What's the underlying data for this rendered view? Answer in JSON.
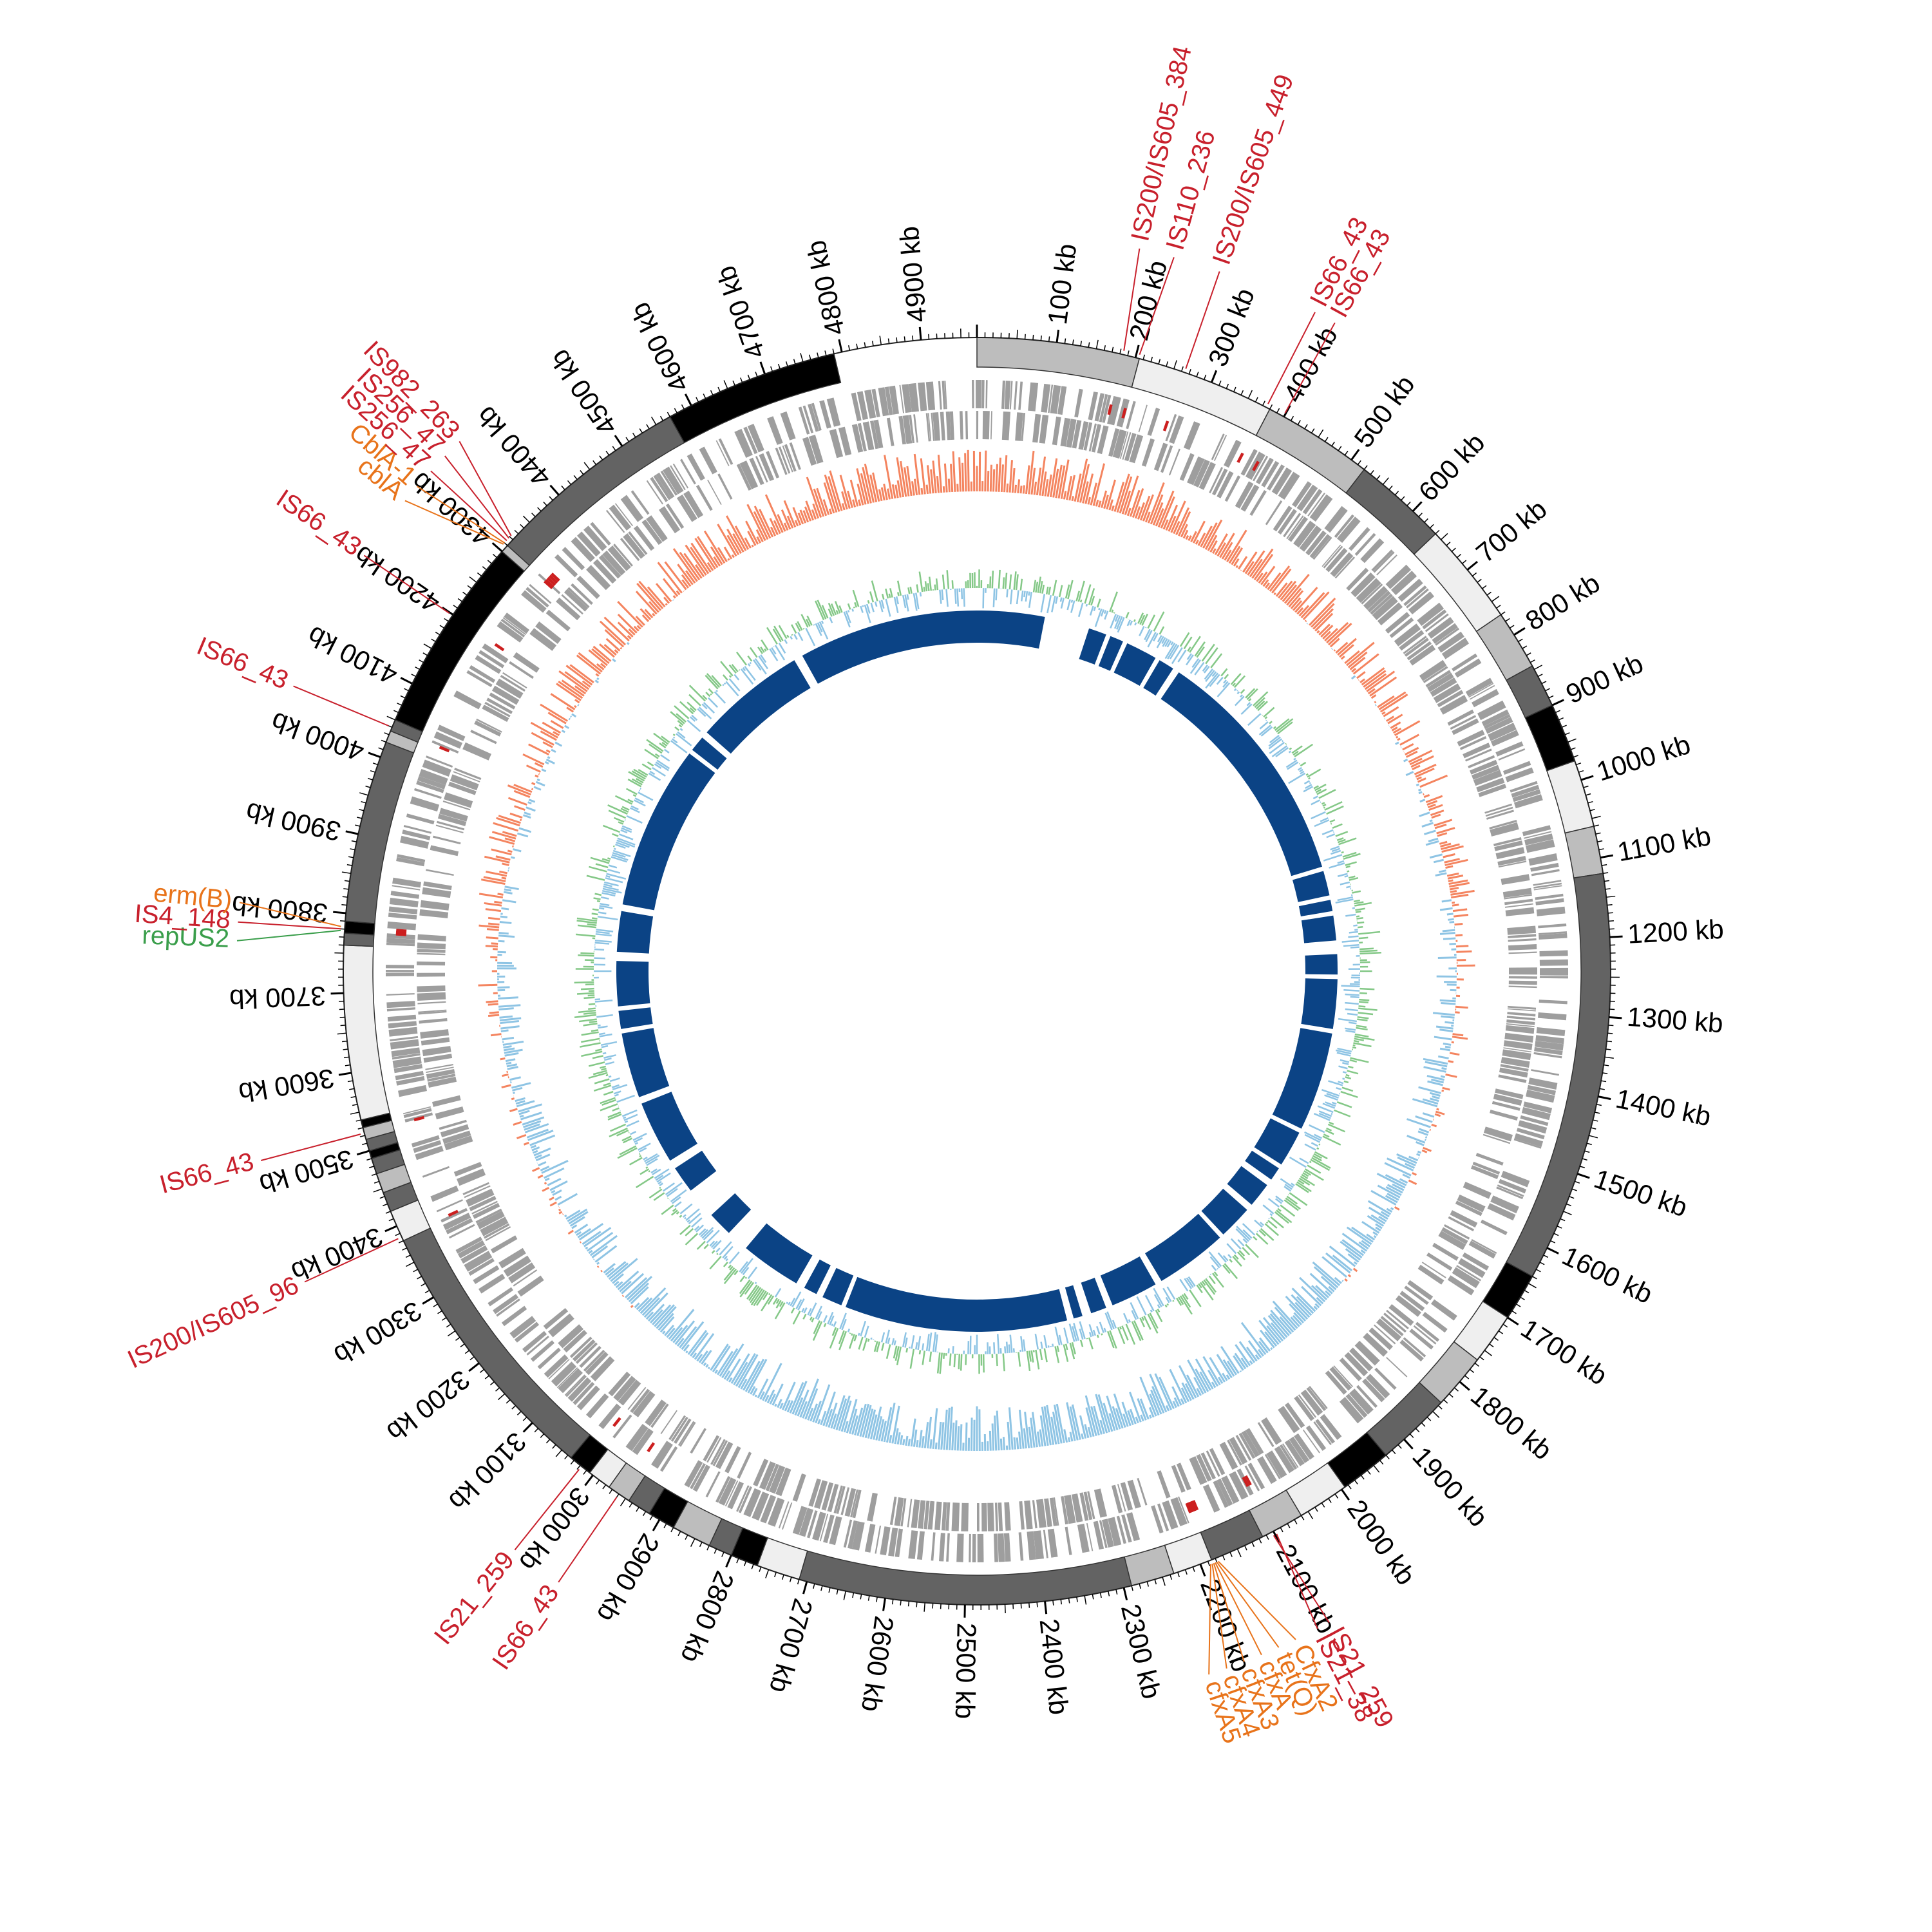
{
  "diagram": {
    "genome_length_kb": 4970,
    "unit": "kb",
    "tick_interval_kb": 100,
    "tick_labels": [
      "100 kb",
      "200 kb",
      "300 kb",
      "400 kb",
      "500 kb",
      "600 kb",
      "700 kb",
      "800 kb",
      "900 kb",
      "1000 kb",
      "1100 kb",
      "1200 kb",
      "1300 kb",
      "1400 kb",
      "1500 kb",
      "1600 kb",
      "1700 kb",
      "1800 kb",
      "1900 kb",
      "2000 kb",
      "2100 kb",
      "2200 kb",
      "2300 kb",
      "2400 kb",
      "2500 kb",
      "2600 kb",
      "2700 kb",
      "2800 kb",
      "2900 kb",
      "3000 kb",
      "3100 kb",
      "3200 kb",
      "3300 kb",
      "3400 kb",
      "3500 kb",
      "3600 kb",
      "3700 kb",
      "3800 kb",
      "3900 kb",
      "4000 kb",
      "4100 kb",
      "4200 kb",
      "4300 kb",
      "4400 kb",
      "4500 kb",
      "4600 kb",
      "4700 kb",
      "4800 kb",
      "4900 kb"
    ],
    "contig_shades": [
      "#bdbdbd",
      "#efefef",
      "#bdbdbd",
      "#636363",
      "#efefef",
      "#bdbdbd",
      "#636363",
      "#000000",
      "#efefef",
      "#bdbdbd",
      "#636363",
      "#000000",
      "#efefef",
      "#bdbdbd",
      "#636363",
      "#000000",
      "#efefef",
      "#bdbdbd",
      "#636363",
      "#efefef",
      "#bdbdbd",
      "#636363",
      "#efefef",
      "#000000",
      "#636363",
      "#bdbdbd",
      "#000000",
      "#636363",
      "#bdbdbd",
      "#efefef",
      "#000000",
      "#636363",
      "#efefef",
      "#636363",
      "#bdbdbd",
      "#636363",
      "#000000",
      "#636363",
      "#bdbdbd",
      "#000000",
      "#efefef",
      "#636363",
      "#000000",
      "#636363",
      "#bdbdbd",
      "#636363",
      "#000000",
      "#bdbdbd",
      "#636363",
      "#000000"
    ],
    "contigs": [
      {
        "start": 0,
        "end": 205
      },
      {
        "start": 205,
        "end": 380
      },
      {
        "start": 380,
        "end": 520
      },
      {
        "start": 520,
        "end": 640
      },
      {
        "start": 640,
        "end": 770
      },
      {
        "start": 770,
        "end": 845
      },
      {
        "start": 845,
        "end": 900
      },
      {
        "start": 900,
        "end": 975
      },
      {
        "start": 975,
        "end": 1060
      },
      {
        "start": 1060,
        "end": 1120
      },
      {
        "start": 1120,
        "end": 1640
      },
      {
        "start": 1640,
        "end": 1700
      },
      {
        "start": 1700,
        "end": 1765
      },
      {
        "start": 1765,
        "end": 1835
      },
      {
        "start": 1835,
        "end": 1930
      },
      {
        "start": 1930,
        "end": 1995
      },
      {
        "start": 1995,
        "end": 2060
      },
      {
        "start": 2060,
        "end": 2115
      },
      {
        "start": 2115,
        "end": 2185
      },
      {
        "start": 2185,
        "end": 2235
      },
      {
        "start": 2235,
        "end": 2290
      },
      {
        "start": 2290,
        "end": 2710
      },
      {
        "start": 2710,
        "end": 2765
      },
      {
        "start": 2765,
        "end": 2800
      },
      {
        "start": 2800,
        "end": 2830
      },
      {
        "start": 2830,
        "end": 2880
      },
      {
        "start": 2880,
        "end": 2915
      },
      {
        "start": 2915,
        "end": 2945
      },
      {
        "start": 2945,
        "end": 2975
      },
      {
        "start": 2975,
        "end": 3005
      },
      {
        "start": 3005,
        "end": 3035
      },
      {
        "start": 3035,
        "end": 3380
      },
      {
        "start": 3380,
        "end": 3420
      },
      {
        "start": 3420,
        "end": 3445
      },
      {
        "start": 3445,
        "end": 3470
      },
      {
        "start": 3470,
        "end": 3490
      },
      {
        "start": 3490,
        "end": 3500
      },
      {
        "start": 3500,
        "end": 3515
      },
      {
        "start": 3515,
        "end": 3530
      },
      {
        "start": 3530,
        "end": 3540
      },
      {
        "start": 3540,
        "end": 3760
      },
      {
        "start": 3760,
        "end": 3775
      },
      {
        "start": 3775,
        "end": 3790
      },
      {
        "start": 3790,
        "end": 4020
      },
      {
        "start": 4020,
        "end": 4035
      },
      {
        "start": 4035,
        "end": 4050
      },
      {
        "start": 4050,
        "end": 4300
      },
      {
        "start": 4300,
        "end": 4310
      },
      {
        "start": 4310,
        "end": 4570
      },
      {
        "start": 4570,
        "end": 4790
      }
    ],
    "ring_colors": {
      "cds": "#9e9e9e",
      "gc_skew_positive": "#f4845f",
      "gc_skew_negative": "#8ec4e4",
      "gc_content_positive": "#84c887",
      "gc_content_negative": "#8ec4e4",
      "blast_hit": "#0b4385",
      "mobile_element_mark": "#cc1f1f"
    },
    "blast_hits": [
      {
        "start": 0,
        "end": 150
      },
      {
        "start": 250,
        "end": 290
      },
      {
        "start": 300,
        "end": 330
      },
      {
        "start": 340,
        "end": 410
      },
      {
        "start": 420,
        "end": 455
      },
      {
        "start": 470,
        "end": 1010
      },
      {
        "start": 1020,
        "end": 1075
      },
      {
        "start": 1085,
        "end": 1110
      },
      {
        "start": 1120,
        "end": 1175
      },
      {
        "start": 1205,
        "end": 1250
      },
      {
        "start": 1260,
        "end": 1370
      },
      {
        "start": 1380,
        "end": 1600
      },
      {
        "start": 1610,
        "end": 1690
      },
      {
        "start": 1700,
        "end": 1730
      },
      {
        "start": 1745,
        "end": 1800
      },
      {
        "start": 1815,
        "end": 1890
      },
      {
        "start": 1900,
        "end": 2060
      },
      {
        "start": 2075,
        "end": 2180
      },
      {
        "start": 2195,
        "end": 2230
      },
      {
        "start": 2250,
        "end": 2270
      },
      {
        "start": 2285,
        "end": 2780
      },
      {
        "start": 2790,
        "end": 2835
      },
      {
        "start": 2850,
        "end": 2880
      },
      {
        "start": 2900,
        "end": 3035
      },
      {
        "start": 3085,
        "end": 3140
      },
      {
        "start": 3210,
        "end": 3270
      },
      {
        "start": 3290,
        "end": 3430
      },
      {
        "start": 3445,
        "end": 3590
      },
      {
        "start": 3600,
        "end": 3640
      },
      {
        "start": 3650,
        "end": 3750
      },
      {
        "start": 3770,
        "end": 3860
      },
      {
        "start": 3875,
        "end": 4240
      },
      {
        "start": 4250,
        "end": 4285
      },
      {
        "start": 4300,
        "end": 4550
      },
      {
        "start": 4570,
        "end": 4970
      }
    ],
    "annotations": [
      {
        "label": "IS200/IS605_384",
        "pos": 184,
        "color": "#c8202c"
      },
      {
        "label": "IS110_236",
        "pos": 204,
        "color": "#c8202c"
      },
      {
        "label": "IS200/IS605_449",
        "pos": 264,
        "color": "#c8202c"
      },
      {
        "label": "IS66_43",
        "pos": 375,
        "color": "#c8202c"
      },
      {
        "label": "IS66_43",
        "pos": 399,
        "color": "#c8202c"
      },
      {
        "label": "IS21_259",
        "pos": 2102,
        "color": "#c8202c"
      },
      {
        "label": "IS21_38",
        "pos": 2098,
        "color": "#c8202c"
      },
      {
        "label": "CfxA2",
        "pos": 2178,
        "color": "#e8731a"
      },
      {
        "label": "tet(Q)",
        "pos": 2180,
        "color": "#e8731a"
      },
      {
        "label": "cfxA",
        "pos": 2182,
        "color": "#e8731a"
      },
      {
        "label": "cfxA3",
        "pos": 2184,
        "color": "#e8731a"
      },
      {
        "label": "cfxA4",
        "pos": 2186,
        "color": "#e8731a"
      },
      {
        "label": "cfxA5",
        "pos": 2188,
        "color": "#e8731a"
      },
      {
        "label": "IS66_43",
        "pos": 2960,
        "color": "#c8202c"
      },
      {
        "label": "IS21_259",
        "pos": 3018,
        "color": "#c8202c"
      },
      {
        "label": "IS200/IS605_96",
        "pos": 3385,
        "color": "#c8202c"
      },
      {
        "label": "IS66_43",
        "pos": 3523,
        "color": "#c8202c"
      },
      {
        "label": "repUS2",
        "pos": 3778,
        "color": "#3a9e4b"
      },
      {
        "label": "IS4_148",
        "pos": 3780,
        "color": "#c8202c"
      },
      {
        "label": "erm(B)",
        "pos": 3783,
        "color": "#e8731a"
      },
      {
        "label": "IS66_43",
        "pos": 4040,
        "color": "#c8202c"
      },
      {
        "label": "IS66_43",
        "pos": 4199,
        "color": "#c8202c"
      },
      {
        "label": "cblA",
        "pos": 4308,
        "color": "#e8731a"
      },
      {
        "label": "CblA-1",
        "pos": 4310,
        "color": "#e8731a"
      },
      {
        "label": "IS256_47",
        "pos": 4314,
        "color": "#c8202c"
      },
      {
        "label": "IS256_47",
        "pos": 4318,
        "color": "#c8202c"
      },
      {
        "label": "IS982_263",
        "pos": 4322,
        "color": "#c8202c"
      }
    ]
  }
}
